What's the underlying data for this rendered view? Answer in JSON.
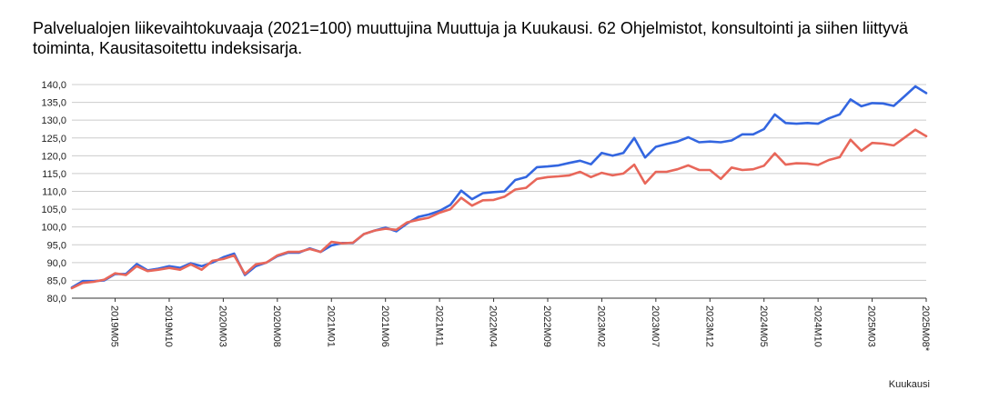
{
  "chart_data": {
    "type": "line",
    "title": "Palvelualojen liikevaihtokuvaaja (2021=100) muuttujina Muuttuja ja Kuukausi. 62 Ohjelmistot, konsultointi ja siihen liittyvä toiminta, Kausitasoitettu indeksisarja.",
    "xlabel": "Kuukausi",
    "ylabel": "",
    "ylim": [
      80,
      140
    ],
    "yticks": [
      "80,0",
      "85,0",
      "90,0",
      "95,0",
      "100,0",
      "105,0",
      "110,0",
      "115,0",
      "120,0",
      "125,0",
      "130,0",
      "135,0",
      "140,0"
    ],
    "grid": true,
    "x": [
      "2019M01",
      "2019M02",
      "2019M03",
      "2019M04",
      "2019M05",
      "2019M06",
      "2019M07",
      "2019M08",
      "2019M09",
      "2019M10",
      "2019M11",
      "2019M12",
      "2020M01",
      "2020M02",
      "2020M03",
      "2020M04",
      "2020M05",
      "2020M06",
      "2020M07",
      "2020M08",
      "2020M09",
      "2020M10",
      "2020M11",
      "2020M12",
      "2021M01",
      "2021M02",
      "2021M03",
      "2021M04",
      "2021M05",
      "2021M06",
      "2021M07",
      "2021M08",
      "2021M09",
      "2021M10",
      "2021M11",
      "2021M12",
      "2022M01",
      "2022M02",
      "2022M03",
      "2022M04",
      "2022M05",
      "2022M06",
      "2022M07",
      "2022M08",
      "2022M09",
      "2022M10",
      "2022M11",
      "2022M12",
      "2023M01",
      "2023M02",
      "2023M03",
      "2023M04",
      "2023M05",
      "2023M06",
      "2023M07",
      "2023M08",
      "2023M09",
      "2023M10",
      "2023M11",
      "2023M12",
      "2024M01",
      "2024M02",
      "2024M03",
      "2024M04",
      "2024M05",
      "2024M06",
      "2024M07",
      "2024M08",
      "2024M09",
      "2024M10",
      "2024M11",
      "2024M12",
      "2025M01",
      "2025M02",
      "2025M03",
      "2025M04",
      "2025M05",
      "2025M06",
      "2025M07",
      "2025M08*"
    ],
    "x_tick_labels": [
      "2019M05",
      "2019M10",
      "2020M03",
      "2020M08",
      "2021M01",
      "2021M06",
      "2021M11",
      "2022M04",
      "2022M09",
      "2023M02",
      "2023M07",
      "2023M12",
      "2024M05",
      "2024M10",
      "2025M03",
      "2025M08*"
    ],
    "series": [
      {
        "color": "#3366e0",
        "values": [
          83.0,
          84.8,
          84.8,
          85.0,
          86.8,
          86.8,
          89.6,
          87.8,
          88.3,
          89.0,
          88.5,
          89.8,
          89.0,
          90.0,
          91.5,
          92.5,
          86.5,
          89.0,
          90.0,
          91.8,
          92.8,
          92.8,
          94.0,
          93.0,
          94.8,
          95.5,
          95.5,
          98.0,
          99.0,
          99.8,
          98.8,
          101.0,
          102.8,
          103.5,
          104.5,
          106.2,
          110.2,
          107.8,
          109.5,
          109.8,
          110.0,
          113.2,
          114.0,
          116.8,
          117.0,
          117.3,
          118.0,
          118.6,
          117.6,
          120.8,
          120.0,
          120.8,
          125.0,
          119.5,
          122.5,
          123.3,
          124.0,
          125.2,
          123.8,
          124.0,
          123.8,
          124.3,
          126.0,
          126.0,
          127.5,
          131.6,
          129.2,
          129.0,
          129.2,
          129.0,
          130.5,
          131.6,
          135.8,
          133.9,
          134.8,
          134.7,
          134.0,
          136.7,
          139.5,
          137.6
        ]
      },
      {
        "color": "#e8675a",
        "values": [
          82.8,
          84.3,
          84.6,
          85.2,
          87.0,
          86.5,
          89.0,
          87.6,
          88.0,
          88.5,
          88.0,
          89.5,
          88.0,
          90.5,
          91.0,
          92.0,
          86.8,
          89.5,
          90.0,
          92.0,
          93.0,
          93.0,
          93.8,
          93.0,
          95.8,
          95.4,
          95.6,
          98.0,
          99.0,
          99.5,
          99.2,
          101.3,
          102.0,
          102.6,
          104.0,
          105.0,
          108.2,
          106.0,
          107.5,
          107.6,
          108.5,
          110.5,
          111.0,
          113.5,
          114.0,
          114.2,
          114.5,
          115.5,
          114.0,
          115.2,
          114.5,
          115.0,
          117.5,
          112.2,
          115.5,
          115.5,
          116.2,
          117.3,
          116.0,
          116.0,
          113.5,
          116.7,
          116.0,
          116.2,
          117.2,
          120.7,
          117.5,
          117.9,
          117.8,
          117.4,
          118.8,
          119.6,
          124.5,
          121.4,
          123.6,
          123.4,
          122.9,
          125.1,
          127.3,
          125.5
        ]
      }
    ]
  }
}
